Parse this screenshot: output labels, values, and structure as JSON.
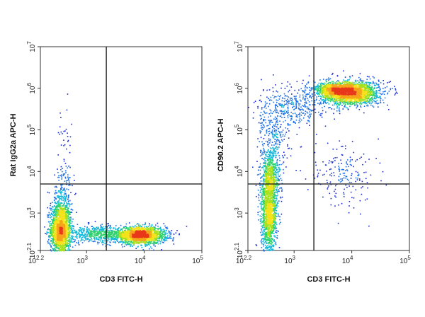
{
  "chart_data": [
    {
      "type": "scatter",
      "xlabel": "CD3 FITC-H",
      "ylabel": "Rat IgG2a APC-H",
      "x_scale": "log",
      "y_scale": "log",
      "xlim": [
        158,
        100000
      ],
      "ylim": [
        126,
        10000000
      ],
      "x_ticks": [
        {
          "value": 158,
          "base": "10",
          "exp": "2.2"
        },
        {
          "value": 1000,
          "base": "10",
          "exp": "3"
        },
        {
          "value": 10000,
          "base": "10",
          "exp": "4"
        },
        {
          "value": 100000,
          "base": "10",
          "exp": "5"
        }
      ],
      "y_ticks": [
        {
          "value": 126,
          "base": "10",
          "exp": "2.1"
        },
        {
          "value": 1000,
          "base": "10",
          "exp": "3"
        },
        {
          "value": 10000,
          "base": "10",
          "exp": "4"
        },
        {
          "value": 100000,
          "base": "10",
          "exp": "5"
        },
        {
          "value": 1000000,
          "base": "10",
          "exp": "6"
        },
        {
          "value": 10000000,
          "base": "10",
          "exp": "7"
        }
      ],
      "quadrant_gate": {
        "x": 2200,
        "y": 5000
      },
      "populations": [
        {
          "x_center": 350,
          "y_center": 400,
          "x_spread_log": 0.09,
          "y_spread_log": 0.32,
          "events": 1900
        },
        {
          "x_center": 8500,
          "y_center": 300,
          "x_spread_log": 0.22,
          "y_spread_log": 0.1,
          "events": 1900
        },
        {
          "x_center": 1500,
          "y_center": 320,
          "x_spread_log": 0.25,
          "y_spread_log": 0.1,
          "events": 500
        },
        {
          "x_center": 380,
          "y_center": 2500,
          "x_spread_log": 0.09,
          "y_spread_log": 0.35,
          "events": 220
        },
        {
          "x_center": 400,
          "y_center": 40000,
          "x_spread_log": 0.06,
          "y_spread_log": 0.55,
          "events": 40
        }
      ]
    },
    {
      "type": "scatter",
      "xlabel": "CD3 FITC-H",
      "ylabel": "CD90.2 APC-H",
      "x_scale": "log",
      "y_scale": "log",
      "xlim": [
        158,
        100000
      ],
      "ylim": [
        126,
        10000000
      ],
      "x_ticks": [
        {
          "value": 158,
          "base": "10",
          "exp": "2.2"
        },
        {
          "value": 1000,
          "base": "10",
          "exp": "3"
        },
        {
          "value": 10000,
          "base": "10",
          "exp": "4"
        },
        {
          "value": 100000,
          "base": "10",
          "exp": "5"
        }
      ],
      "y_ticks": [
        {
          "value": 126,
          "base": "10",
          "exp": "2.1"
        },
        {
          "value": 1000,
          "base": "10",
          "exp": "3"
        },
        {
          "value": 10000,
          "base": "10",
          "exp": "4"
        },
        {
          "value": 100000,
          "base": "10",
          "exp": "5"
        },
        {
          "value": 1000000,
          "base": "10",
          "exp": "6"
        },
        {
          "value": 10000000,
          "base": "10",
          "exp": "7"
        }
      ],
      "quadrant_gate": {
        "x": 2200,
        "y": 5000
      },
      "populations": [
        {
          "x_center": 9000,
          "y_center": 800000,
          "x_spread_log": 0.25,
          "y_spread_log": 0.14,
          "events": 2400
        },
        {
          "x_center": 5000,
          "y_center": 1000000,
          "x_spread_log": 0.18,
          "y_spread_log": 0.06,
          "events": 500
        },
        {
          "x_center": 360,
          "y_center": 900,
          "x_spread_log": 0.07,
          "y_spread_log": 0.45,
          "events": 1300
        },
        {
          "x_center": 380,
          "y_center": 8000,
          "x_spread_log": 0.08,
          "y_spread_log": 0.35,
          "events": 700
        },
        {
          "x_center": 450,
          "y_center": 80000,
          "x_spread_log": 0.15,
          "y_spread_log": 0.45,
          "events": 260
        },
        {
          "x_center": 1000,
          "y_center": 400000,
          "x_spread_log": 0.28,
          "y_spread_log": 0.25,
          "events": 350
        },
        {
          "x_center": 7000,
          "y_center": 8000,
          "x_spread_log": 0.28,
          "y_spread_log": 0.4,
          "events": 180
        }
      ]
    }
  ]
}
